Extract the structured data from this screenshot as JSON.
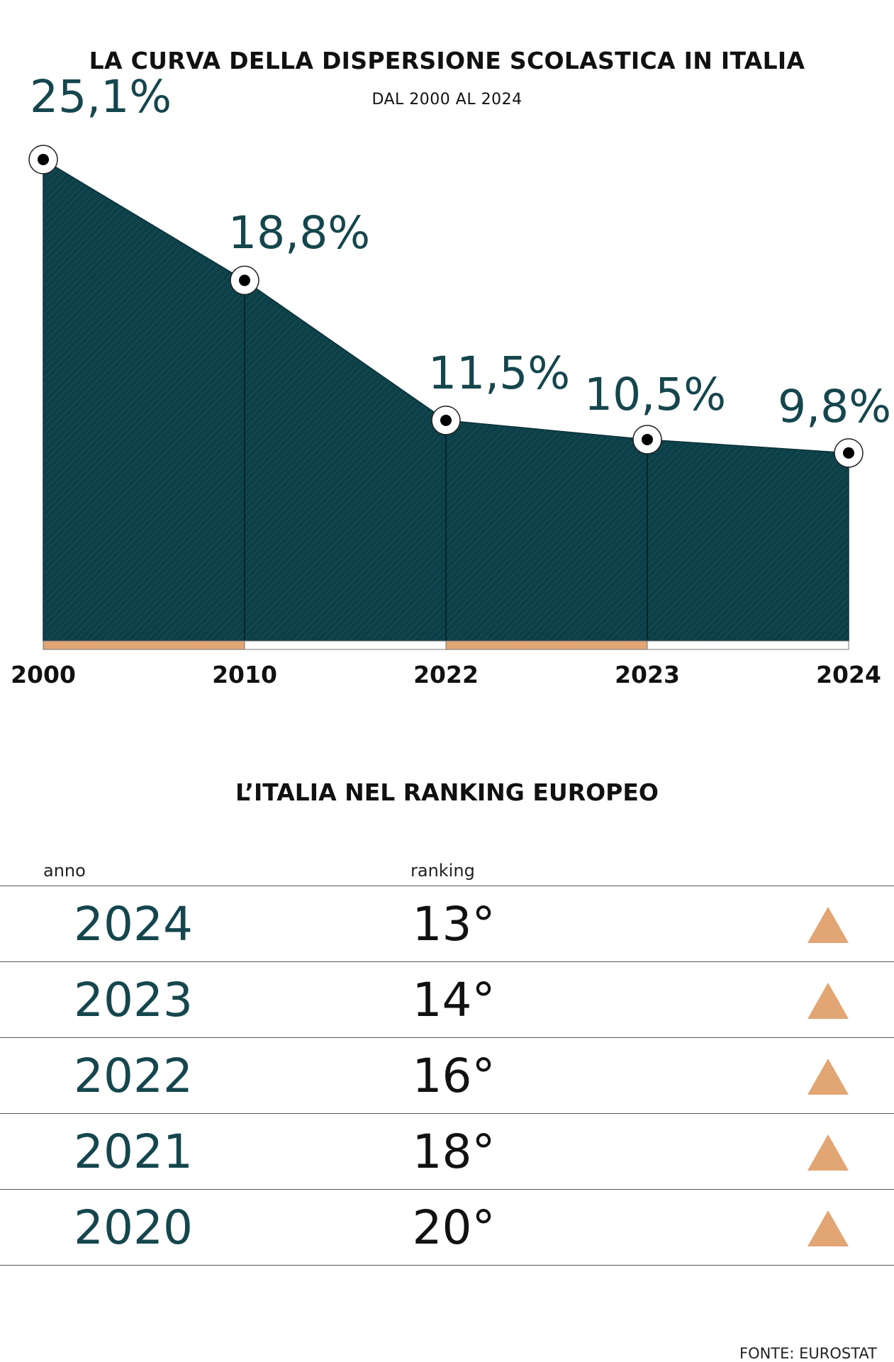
{
  "chart_data": [
    {
      "type": "area",
      "title": "LA CURVA DELLA DISPERSIONE SCOLASTICA IN ITALIA",
      "subtitle": "DAL 2000 AL 2024",
      "categories": [
        "2000",
        "2010",
        "2022",
        "2023",
        "2024"
      ],
      "values": [
        25.1,
        18.8,
        11.5,
        10.5,
        9.8
      ],
      "value_labels": [
        "25,1%",
        "18,8%",
        "11,5%",
        "10,5%",
        "9,8%"
      ],
      "ylim": [
        0,
        25.1
      ],
      "grid": false,
      "colors": {
        "area": "#0c3f47",
        "marker_fill": "#ffffff",
        "marker_dot": "#000000",
        "label": "#15464d",
        "baseline_accent": "#e2a574"
      }
    },
    {
      "type": "table",
      "title": "L’ITALIA NEL RANKING EUROPEO",
      "columns": [
        "anno",
        "ranking"
      ],
      "rows": [
        {
          "anno": "2024",
          "ranking": "13°",
          "trend": "up"
        },
        {
          "anno": "2023",
          "ranking": "14°",
          "trend": "up"
        },
        {
          "anno": "2022",
          "ranking": "16°",
          "trend": "up"
        },
        {
          "anno": "2021",
          "ranking": "18°",
          "trend": "up"
        },
        {
          "anno": "2020",
          "ranking": "20°",
          "trend": "up"
        }
      ],
      "trend_icon": "up-triangle-icon",
      "trend_color": "#e2a574"
    }
  ],
  "source": "FONTE: EUROSTAT"
}
